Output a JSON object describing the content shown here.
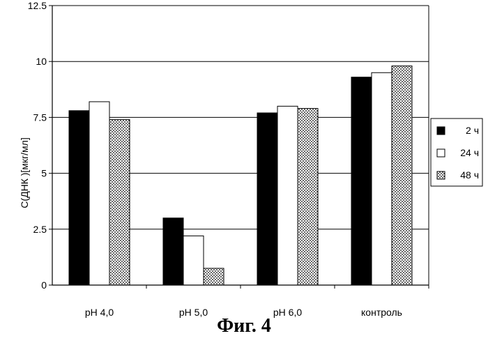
{
  "caption": "Фиг. 4",
  "chart_data": {
    "type": "bar",
    "categories": [
      "pH 4,0",
      "pH 5,0",
      "pH 6,0",
      "контроль"
    ],
    "series": [
      {
        "name": "2 ч",
        "values": [
          7.8,
          3.0,
          7.7,
          9.3
        ]
      },
      {
        "name": "24 ч",
        "values": [
          8.2,
          2.2,
          8.0,
          9.5
        ]
      },
      {
        "name": "48 ч",
        "values": [
          7.4,
          0.75,
          7.9,
          9.8
        ]
      }
    ],
    "ylabel": "С(ДНК )[мкг/мл]",
    "xlabel": "",
    "ylim": [
      0,
      12.5
    ],
    "yticks": [
      "0",
      "2.5",
      "5",
      "7.5",
      "10",
      "12.5"
    ],
    "grid": true,
    "legend_position": "right",
    "series_styles": [
      "solid-black",
      "white",
      "dotted"
    ]
  }
}
